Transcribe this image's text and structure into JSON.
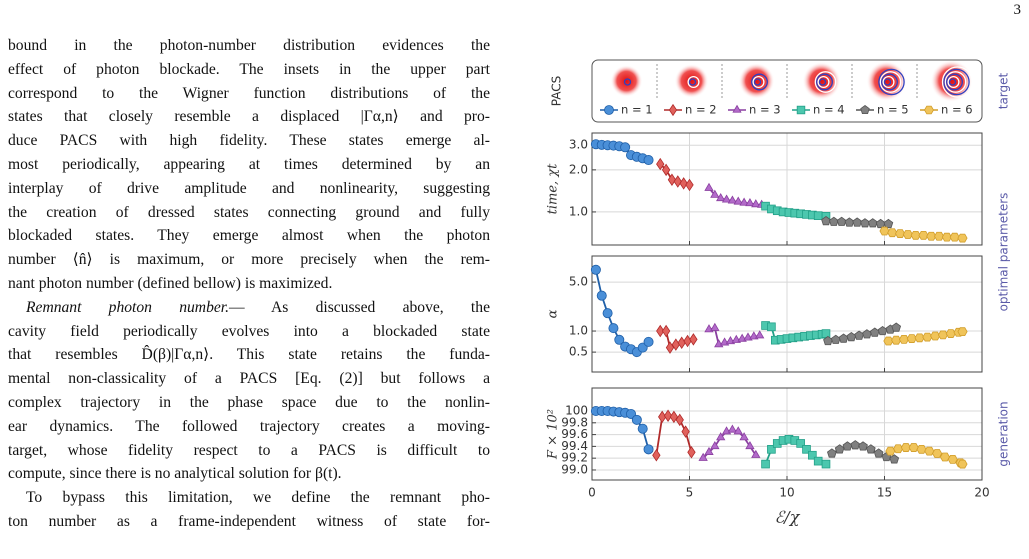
{
  "page": {
    "number": "3"
  },
  "text": {
    "paragraphs": [
      {
        "lines": [
          "bound in the photon-number distribution evidences the",
          "effect of photon blockade. The insets in the upper part",
          "correspond to the Wigner function distributions of the",
          "states that closely resemble a displaced |Γα,n⟩ and pro-",
          "duce PACS with high fidelity. These states emerge al-",
          "most periodically, appearing at times determined by an",
          "interplay of drive amplitude and nonlinearity, suggesting",
          "the creation of dressed states connecting ground and fully",
          "blockaded states. They emerge almost when the photon",
          "number ⟨n̂⟩ is maximum, or more precisely when the rem-",
          "nant photon number (defined bellow) is maximized."
        ]
      },
      {
        "heading": "Remnant photon number.",
        "lines": [
          "— As discussed above, the",
          "cavity field periodically evolves into a blockaded state",
          "that resembles D̂(β)|Γα,n⟩. This state retains the funda-",
          "mental non-classicality of a PACS [Eq. (2)] but follows a",
          "complex trajectory in the phase space due to the nonlin-",
          "ear dynamics. The followed trajectory creates a moving-",
          "target, whose fidelity respect to a PACS is difficult to",
          "compute, since there is no analytical solution for β(t)."
        ]
      },
      {
        "lines": [
          "To bypass this limitation, we define the remnant pho-",
          "ton number as a frame-independent witness of state for-"
        ]
      }
    ]
  },
  "figure": {
    "inset_label": "PACS",
    "inset_side_label": "target",
    "legend": [
      "n = 1",
      "n = 2",
      "n = 3",
      "n = 4",
      "n = 5",
      "n = 6"
    ],
    "side_labels": [
      "optimal parameters",
      "generation"
    ]
  },
  "chart_data": [
    {
      "type": "line",
      "ylabel": "time, χt",
      "log_scale": true,
      "grid": true,
      "ylim": [
        0.58,
        3.67
      ],
      "yticks": [
        {
          "value": 1,
          "label": "1.0"
        },
        {
          "value": 2,
          "label": "2.0"
        },
        {
          "value": 3,
          "label": "3.0"
        }
      ],
      "series": [
        {
          "color": "#4a8fd8",
          "line_color": "#1f5fa8",
          "marker": "circle",
          "x": [
            0.2,
            0.5,
            0.8,
            1.1,
            1.4,
            1.7,
            2.0,
            2.3,
            2.6,
            2.9
          ],
          "values": [
            3.05,
            3.02,
            3.0,
            2.98,
            2.95,
            2.9,
            2.55,
            2.48,
            2.42,
            2.35
          ]
        },
        {
          "color": "#e0615c",
          "line_color": "#b02a2a",
          "marker": "diamond",
          "x": [
            3.5,
            3.8,
            4.1,
            4.4,
            4.7,
            5.0
          ],
          "values": [
            2.2,
            2.0,
            1.7,
            1.65,
            1.6,
            1.56
          ]
        },
        {
          "color": "#b26ac9",
          "line_color": "#8a3fa0",
          "marker": "triangle",
          "x": [
            6.0,
            6.3,
            6.6,
            6.9,
            7.2,
            7.5,
            7.8,
            8.1,
            8.4,
            8.7
          ],
          "values": [
            1.48,
            1.32,
            1.25,
            1.22,
            1.2,
            1.18,
            1.16,
            1.15,
            1.13,
            1.12
          ]
        },
        {
          "color": "#4cc7ae",
          "line_color": "#22a088",
          "marker": "square",
          "x": [
            8.9,
            9.2,
            9.5,
            9.8,
            10.1,
            10.4,
            10.7,
            11.0,
            11.3,
            11.6,
            12.0
          ],
          "values": [
            1.1,
            1.05,
            1.02,
            1.0,
            0.99,
            0.98,
            0.97,
            0.96,
            0.95,
            0.94,
            0.93
          ]
        },
        {
          "color": "#808080",
          "line_color": "#555555",
          "marker": "pentagon",
          "x": [
            12.0,
            12.4,
            12.8,
            13.2,
            13.6,
            14.0,
            14.4,
            14.8,
            15.2
          ],
          "values": [
            0.86,
            0.85,
            0.85,
            0.84,
            0.84,
            0.83,
            0.83,
            0.82,
            0.82
          ]
        },
        {
          "color": "#f0c45a",
          "line_color": "#d19d2a",
          "marker": "hexagon",
          "x": [
            15.0,
            15.4,
            15.8,
            16.2,
            16.6,
            17.0,
            17.4,
            17.8,
            18.2,
            18.6,
            19.0
          ],
          "values": [
            0.73,
            0.71,
            0.7,
            0.69,
            0.68,
            0.68,
            0.67,
            0.67,
            0.66,
            0.66,
            0.65
          ]
        }
      ]
    },
    {
      "type": "line",
      "ylabel": "α",
      "log_scale": true,
      "grid": true,
      "ylim": [
        0.26,
        11.8
      ],
      "yticks": [
        0.5,
        {
          "value": 1,
          "label": "1.0"
        },
        {
          "value": 5,
          "label": "5.0"
        }
      ],
      "series": [
        {
          "color": "#4a8fd8",
          "line_color": "#1f5fa8",
          "marker": "circle",
          "x": [
            0.2,
            0.5,
            0.8,
            1.1,
            1.4,
            1.7,
            2.0,
            2.3,
            2.6,
            2.9
          ],
          "values": [
            7.5,
            3.2,
            1.8,
            1.1,
            0.75,
            0.6,
            0.55,
            0.5,
            0.58,
            0.7
          ]
        },
        {
          "color": "#e0615c",
          "line_color": "#b02a2a",
          "marker": "diamond",
          "x": [
            3.5,
            3.8,
            4.0,
            4.3,
            4.6,
            4.9,
            5.2
          ],
          "values": [
            1.0,
            1.0,
            0.58,
            0.64,
            0.68,
            0.72,
            0.76
          ]
        },
        {
          "color": "#b26ac9",
          "line_color": "#8a3fa0",
          "marker": "triangle",
          "x": [
            6.0,
            6.3,
            6.5,
            6.8,
            7.1,
            7.4,
            7.7,
            8.0,
            8.3,
            8.6
          ],
          "values": [
            1.05,
            1.1,
            0.64,
            0.68,
            0.71,
            0.74,
            0.77,
            0.8,
            0.83,
            0.86
          ]
        },
        {
          "color": "#4cc7ae",
          "line_color": "#22a088",
          "marker": "square",
          "x": [
            8.9,
            9.2,
            9.4,
            9.7,
            10.0,
            10.3,
            10.6,
            10.9,
            11.2,
            11.5,
            11.8,
            12.0
          ],
          "values": [
            1.2,
            1.15,
            0.74,
            0.76,
            0.78,
            0.8,
            0.82,
            0.84,
            0.86,
            0.88,
            0.9,
            0.92
          ]
        },
        {
          "color": "#808080",
          "line_color": "#555555",
          "marker": "pentagon",
          "x": [
            12.1,
            12.5,
            12.9,
            13.3,
            13.7,
            14.1,
            14.5,
            14.9,
            15.3,
            15.6
          ],
          "values": [
            0.72,
            0.75,
            0.78,
            0.82,
            0.86,
            0.9,
            0.95,
            1.0,
            1.05,
            1.12
          ]
        },
        {
          "color": "#f0c45a",
          "line_color": "#d19d2a",
          "marker": "hexagon",
          "x": [
            15.2,
            15.6,
            16.0,
            16.4,
            16.8,
            17.2,
            17.6,
            18.0,
            18.4,
            18.8,
            19.0
          ],
          "values": [
            0.72,
            0.74,
            0.76,
            0.78,
            0.8,
            0.82,
            0.85,
            0.88,
            0.92,
            0.96,
            0.98
          ]
        }
      ]
    },
    {
      "type": "line",
      "ylabel": "F × 10²",
      "log_scale": false,
      "grid": true,
      "ylim": [
        98.83,
        100.39
      ],
      "yticks": [
        {
          "value": 99,
          "label": "99.0"
        },
        99.2,
        99.4,
        99.6,
        99.8,
        100
      ],
      "xlim": [
        0,
        20
      ],
      "xticks": [
        0,
        5,
        10,
        15,
        20
      ],
      "xlabel": "ℰ/χ",
      "series": [
        {
          "color": "#4a8fd8",
          "line_color": "#1f5fa8",
          "marker": "circle",
          "x": [
            0.2,
            0.5,
            0.8,
            1.1,
            1.4,
            1.7,
            2.0,
            2.3,
            2.6,
            2.9
          ],
          "values": [
            100,
            100,
            100,
            99.99,
            99.98,
            99.97,
            99.95,
            99.85,
            99.7,
            99.35
          ]
        },
        {
          "color": "#e0615c",
          "line_color": "#b02a2a",
          "marker": "diamond",
          "x": [
            3.3,
            3.6,
            3.9,
            4.2,
            4.5,
            4.8,
            5.1
          ],
          "values": [
            99.25,
            99.9,
            99.92,
            99.9,
            99.85,
            99.65,
            99.3
          ]
        },
        {
          "color": "#b26ac9",
          "line_color": "#8a3fa0",
          "marker": "triangle",
          "x": [
            5.7,
            6.0,
            6.3,
            6.6,
            6.9,
            7.2,
            7.5,
            7.8,
            8.1,
            8.4
          ],
          "values": [
            99.2,
            99.3,
            99.4,
            99.55,
            99.65,
            99.68,
            99.65,
            99.55,
            99.4,
            99.25
          ]
        },
        {
          "color": "#4cc7ae",
          "line_color": "#22a088",
          "marker": "square",
          "x": [
            8.9,
            9.2,
            9.5,
            9.8,
            10.1,
            10.4,
            10.7,
            11.0,
            11.3,
            11.6,
            12.0
          ],
          "values": [
            99.1,
            99.35,
            99.45,
            99.5,
            99.52,
            99.5,
            99.45,
            99.35,
            99.25,
            99.15,
            99.1
          ]
        },
        {
          "color": "#808080",
          "line_color": "#555555",
          "marker": "pentagon",
          "x": [
            12.3,
            12.7,
            13.1,
            13.5,
            13.9,
            14.3,
            14.7,
            15.1,
            15.5
          ],
          "values": [
            99.28,
            99.35,
            99.4,
            99.42,
            99.4,
            99.35,
            99.28,
            99.22,
            99.18
          ]
        },
        {
          "color": "#f0c45a",
          "line_color": "#d19d2a",
          "marker": "hexagon",
          "x": [
            15.3,
            15.7,
            16.1,
            16.5,
            16.9,
            17.3,
            17.7,
            18.1,
            18.5,
            18.9,
            19.0
          ],
          "values": [
            99.32,
            99.36,
            99.38,
            99.38,
            99.35,
            99.32,
            99.28,
            99.22,
            99.18,
            99.12,
            99.1
          ]
        }
      ]
    }
  ]
}
